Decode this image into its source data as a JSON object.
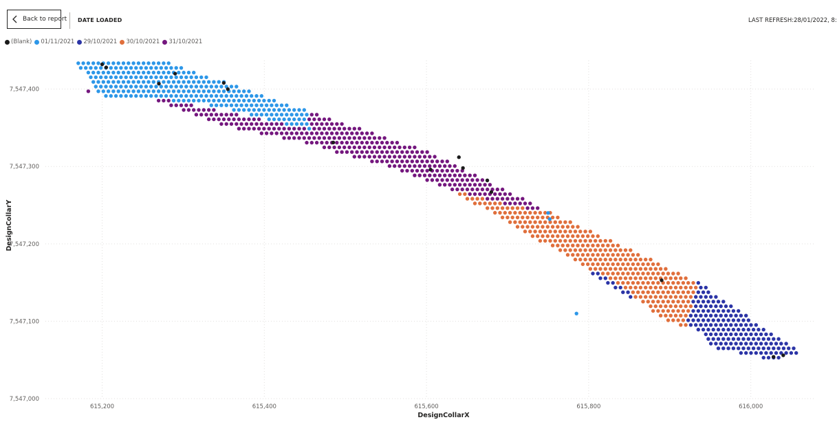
{
  "header": {
    "back_label": "Back to report",
    "title": "DATE LOADED",
    "last_refresh": "LAST REFRESH:28/01/2022, 8:"
  },
  "icons": {
    "back": "chevron-left-icon"
  },
  "legend": [
    {
      "label": "(Blank)",
      "color": "#1b1b1b"
    },
    {
      "label": "01/11/2021",
      "color": "#2d97e8"
    },
    {
      "label": "29/10/2021",
      "color": "#2b34a6"
    },
    {
      "label": "30/10/2021",
      "color": "#e06f3c"
    },
    {
      "label": "31/10/2021",
      "color": "#74177e"
    }
  ],
  "chart_data": {
    "type": "scatter",
    "xlabel": "DesignCollarX",
    "ylabel": "DesignCollarY",
    "xlim": [
      615130,
      616080
    ],
    "ylim": [
      7547000,
      7547437
    ],
    "xticks": [
      615200,
      615400,
      615600,
      615800,
      616000
    ],
    "yticks": [
      7547000,
      7547100,
      7547200,
      7547300,
      7547400
    ],
    "xtick_labels": [
      "615,200",
      "615,400",
      "615,600",
      "615,800",
      "616,000"
    ],
    "ytick_labels": [
      "7,547,000",
      "7,547,100",
      "7,547,200",
      "7,547,300",
      "7,547,400"
    ],
    "grid": true,
    "legend_position": "top-left",
    "series": [
      {
        "name": "(Blank)",
        "color": "#1b1b1b",
        "points": [
          [
            615200,
            7547432
          ],
          [
            615205,
            7547428
          ],
          [
            615270,
            7547407
          ],
          [
            615290,
            7547420
          ],
          [
            615350,
            7547408
          ],
          [
            615355,
            7547400
          ],
          [
            615485,
            7547331
          ],
          [
            615640,
            7547312
          ],
          [
            615645,
            7547298
          ],
          [
            615675,
            7547282
          ],
          [
            615680,
            7547267
          ],
          [
            615890,
            7547153
          ],
          [
            616028,
            7547054
          ],
          [
            616040,
            7547056
          ],
          [
            615605,
            7547296
          ]
        ]
      },
      {
        "name": "01/11/2021",
        "color": "#2d97e8",
        "region": [
          [
            615168,
            7547434
          ],
          [
            615283,
            7547434
          ],
          [
            615453,
            7547372
          ],
          [
            615458,
            7547347
          ],
          [
            615330,
            7547380
          ],
          [
            615240,
            7547390
          ],
          [
            615200,
            7547390
          ]
        ],
        "extra_points": [
          [
            615750,
            7547240
          ],
          [
            615752,
            7547232
          ],
          [
            615785,
            7547110
          ]
        ]
      },
      {
        "name": "31/10/2021",
        "color": "#74177e",
        "region": [
          [
            615175,
            7547398
          ],
          [
            615262,
            7547390
          ],
          [
            615458,
            7547347
          ],
          [
            615453,
            7547372
          ],
          [
            615600,
            7547320
          ],
          [
            615750,
            7547242
          ],
          [
            615715,
            7547247
          ],
          [
            615635,
            7547268
          ],
          [
            615545,
            7547302
          ],
          [
            615450,
            7547330
          ],
          [
            615350,
            7547352
          ],
          [
            615270,
            7547385
          ]
        ]
      },
      {
        "name": "30/10/2021",
        "color": "#e06f3c",
        "region": [
          [
            615458,
            7547347
          ],
          [
            615600,
            7547320
          ],
          [
            615750,
            7547242
          ],
          [
            615935,
            7547151
          ],
          [
            615920,
            7547093
          ],
          [
            615890,
            7547103
          ],
          [
            615840,
            7547145
          ],
          [
            615755,
            7547195
          ],
          [
            615680,
            7547240
          ],
          [
            615610,
            7547280
          ],
          [
            615520,
            7547317
          ]
        ]
      },
      {
        "name": "29/10/2021",
        "color": "#2b34a6",
        "region": [
          [
            615790,
            7547220
          ],
          [
            615850,
            7547185
          ],
          [
            615935,
            7547151
          ],
          [
            616060,
            7547060
          ],
          [
            616030,
            7547050
          ],
          [
            615980,
            7547060
          ],
          [
            615950,
            7547067
          ],
          [
            615940,
            7547085
          ],
          [
            615920,
            7547094
          ],
          [
            615890,
            7547112
          ],
          [
            615845,
            7547133
          ],
          [
            615800,
            7547165
          ],
          [
            615780,
            7547190
          ]
        ]
      }
    ]
  }
}
